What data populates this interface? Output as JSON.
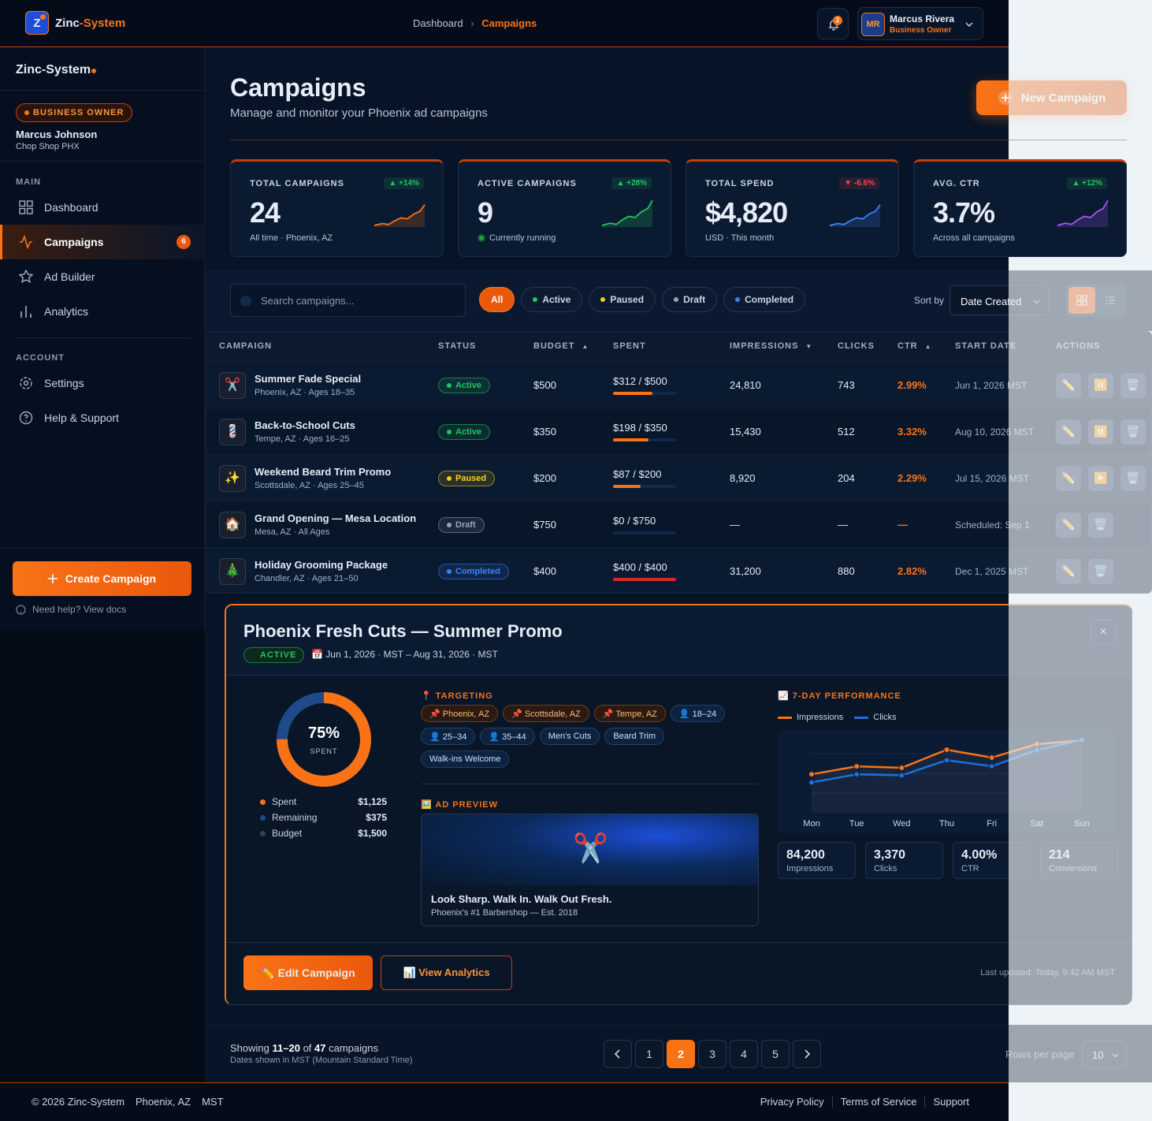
{
  "header": {
    "logo": "Z",
    "brand_a": "Zinc",
    "brand_b": "-System",
    "breadcrumb": [
      "Dashboard",
      "Campaigns"
    ],
    "breadcrumb_sep": "›",
    "notifications": "2",
    "user": {
      "initials": "MR",
      "name": "Marcus Rivera",
      "role": "Business Owner"
    }
  },
  "sidebar": {
    "brand": "Zinc-System",
    "role": "BUSINESS OWNER",
    "user": "Marcus Johnson",
    "business": "Chop Shop PHX",
    "sections": [
      {
        "title": "MAIN",
        "items": [
          {
            "label": "Dashboard"
          },
          {
            "label": "Campaigns",
            "badge": "6",
            "active": true
          },
          {
            "label": "Ad Builder"
          },
          {
            "label": "Analytics"
          }
        ]
      },
      {
        "title": "ACCOUNT",
        "items": [
          {
            "label": "Settings"
          },
          {
            "label": "Help & Support"
          }
        ]
      }
    ],
    "cta": "Create Campaign",
    "help": "Need help? View docs"
  },
  "page": {
    "title": "Campaigns",
    "subtitle": "Manage and monitor your Phoenix ad campaigns",
    "new_button": "New Campaign"
  },
  "stats": [
    {
      "label": "TOTAL CAMPAIGNS",
      "change": "▲ +14%",
      "change_color": "#22c55e",
      "value": "24",
      "note": "All time · Phoenix, AZ",
      "color": "#f97316"
    },
    {
      "label": "ACTIVE CAMPAIGNS",
      "change": "▲ +28%",
      "change_color": "#22c55e",
      "value": "9",
      "note": "Currently running",
      "color": "#22c55e"
    },
    {
      "label": "TOTAL SPEND",
      "change": "▼ -6.6%",
      "change_color": "#ef4444",
      "value": "$4,820",
      "note": "USD · This month",
      "color": "#3b82f6"
    },
    {
      "label": "AVG. CTR",
      "change": "▲ +12%",
      "change_color": "#22c55e",
      "value": "3.7%",
      "note": "Across all campaigns",
      "color": "#a855f7"
    }
  ],
  "filters": {
    "search": "Search campaigns...",
    "chips": [
      {
        "label": "All"
      },
      {
        "label": "Active",
        "color": "#22c55e"
      },
      {
        "label": "Paused",
        "color": "#facc15"
      },
      {
        "label": "Draft",
        "color": "#94a3b8"
      },
      {
        "label": "Completed",
        "color": "#3b82f6"
      }
    ],
    "active": 0,
    "sort_label": "Sort by",
    "sort_value": "Date Created"
  },
  "table": {
    "columns": [
      {
        "label": "CAMPAIGN"
      },
      {
        "label": "STATUS"
      },
      {
        "label": "BUDGET",
        "sort": "▲"
      },
      {
        "label": "SPENT"
      },
      {
        "label": "IMPRESSIONS",
        "sort": "▼"
      },
      {
        "label": "CLICKS"
      },
      {
        "label": "CTR",
        "sort": "▲"
      },
      {
        "label": "START DATE"
      },
      {
        "label": "ACTIONS"
      }
    ],
    "rows": [
      {
        "icon": "✂️",
        "name": "Summer Fade Special",
        "meta": "Phoenix, AZ · Ages 18–35",
        "status": "Active",
        "status_color": "#22c55e",
        "budget_label": "$500",
        "spent_label": "$312 / $500",
        "spent": 312,
        "budget": 500,
        "bar_color": "#f97316",
        "impressions": "24,810",
        "clicks": "743",
        "ctr": "2.99%",
        "start": "Jun 1, 2026 MST",
        "actions": [
          "✏️",
          "⏸️",
          "🗑️"
        ]
      },
      {
        "icon": "💈",
        "name": "Back-to-School Cuts",
        "meta": "Tempe, AZ · Ages 16–25",
        "status": "Active",
        "status_color": "#22c55e",
        "budget_label": "$350",
        "spent_label": "$198 / $350",
        "spent": 198,
        "budget": 350,
        "bar_color": "#f97316",
        "impressions": "15,430",
        "clicks": "512",
        "ctr": "3.32%",
        "start": "Aug 10, 2026 MST",
        "actions": [
          "✏️",
          "⏸️",
          "🗑️"
        ]
      },
      {
        "icon": "✨",
        "name": "Weekend Beard Trim Promo",
        "meta": "Scottsdale, AZ · Ages 25–45",
        "status": "Paused",
        "status_color": "#facc15",
        "budget_label": "$200",
        "spent_label": "$87 / $200",
        "spent": 87,
        "budget": 200,
        "bar_color": "#f97316",
        "impressions": "8,920",
        "clicks": "204",
        "ctr": "2.29%",
        "start": "Jul 15, 2026 MST",
        "actions": [
          "✏️",
          "▶️",
          "🗑️"
        ]
      },
      {
        "icon": "🏠",
        "name": "Grand Opening — Mesa Location",
        "meta": "Mesa, AZ · All Ages",
        "status": "Draft",
        "status_color": "#94a3b8",
        "budget_label": "$750",
        "spent_label": "$0 / $750",
        "spent": 0,
        "budget": 750,
        "bar_color": "#f97316",
        "impressions": "—",
        "clicks": "—",
        "ctr": "—",
        "start": "Scheduled: Sep 1",
        "actions": [
          "✏️",
          "🗑️"
        ]
      },
      {
        "icon": "🎄",
        "name": "Holiday Grooming Package",
        "meta": "Chandler, AZ · Ages 21–50",
        "status": "Completed",
        "status_color": "#3b82f6",
        "budget_label": "$400",
        "spent_label": "$400 / $400",
        "spent": 400,
        "budget": 400,
        "bar_color": "#dc2626",
        "impressions": "31,200",
        "clicks": "880",
        "ctr": "2.82%",
        "start": "Dec 1, 2025 MST",
        "actions": [
          "✏️",
          "🗑️"
        ]
      }
    ]
  },
  "detail": {
    "title": "Phoenix Fresh Cuts — Summer Promo",
    "status": "ACTIVE",
    "date_icon": "📅",
    "dates": "Jun 1, 2026 · MST – Aug 31, 2026 · MST",
    "close": "×",
    "donut": {
      "value": 75,
      "label": "75%",
      "caption": "SPENT"
    },
    "legend": [
      {
        "label": "Spent",
        "value": "$1,125",
        "color": "#f97316"
      },
      {
        "label": "Remaining",
        "value": "$375",
        "color": "#1e4a8a"
      },
      {
        "label": "Budget",
        "value": "$1,500",
        "color": "#334155"
      }
    ],
    "targeting_title": "📍 TARGETING",
    "tags": [
      {
        "label": "📌 Phoenix, AZ",
        "kind": "loc"
      },
      {
        "label": "📌 Scottsdale, AZ",
        "kind": "loc"
      },
      {
        "label": "📌 Tempe, AZ",
        "kind": "loc"
      },
      {
        "label": "👤 18–24",
        "kind": "age"
      },
      {
        "label": "👤 25–34",
        "kind": "age"
      },
      {
        "label": "👤 35–44",
        "kind": "age"
      },
      {
        "label": "Men's Cuts",
        "kind": "topic"
      },
      {
        "label": "Beard Trim",
        "kind": "topic"
      },
      {
        "label": "Walk-ins Welcome",
        "kind": "topic"
      }
    ],
    "preview_title": "🖼️ AD PREVIEW",
    "preview_icon": "✂️",
    "preview_headline": "Look Sharp. Walk In. Walk Out Fresh.",
    "preview_sub": "Phoenix's #1 Barbershop — Est. 2018",
    "performance": {
      "title": "📈 7-DAY PERFORMANCE",
      "categories": [
        "Mon",
        "Tue",
        "Wed",
        "Thu",
        "Fri",
        "Sat",
        "Sun"
      ],
      "series": [
        {
          "name": "Impressions",
          "color": "#f97316",
          "values": [
            8300,
            10000,
            9700,
            13600,
            11900,
            14800,
            15600
          ]
        },
        {
          "name": "Clicks",
          "color": "#1d6fd8",
          "axis": "y2",
          "values": [
            300,
            380,
            370,
            520,
            460,
            620,
            720
          ]
        }
      ],
      "ylim": [
        0,
        17000
      ],
      "y2lim": [
        0,
        780
      ]
    },
    "kpis": [
      {
        "value": "84,200",
        "label": "Impressions"
      },
      {
        "value": "3,370",
        "label": "Clicks"
      },
      {
        "value": "4.00%",
        "label": "CTR"
      },
      {
        "value": "214",
        "label": "Conversions"
      }
    ],
    "edit": "✏️ Edit Campaign",
    "analytics": "📊 View Analytics",
    "updated": "Last updated: Today, 9:42 AM MST"
  },
  "pagination": {
    "showing": "Showing",
    "range": "11–20",
    "of": "of",
    "total": "47",
    "suffix": "campaigns",
    "note": "Dates shown in MST (Mountain Standard Time)",
    "pages": [
      1,
      2,
      3,
      4,
      5
    ],
    "current": 2,
    "rows_label": "Rows per page",
    "rows_value": "10"
  },
  "footer": {
    "copyright": "© 2026 Zinc-System",
    "city": "Phoenix, AZ",
    "tz": "MST",
    "links": [
      "Privacy Policy",
      "Terms of Service",
      "Support"
    ]
  }
}
